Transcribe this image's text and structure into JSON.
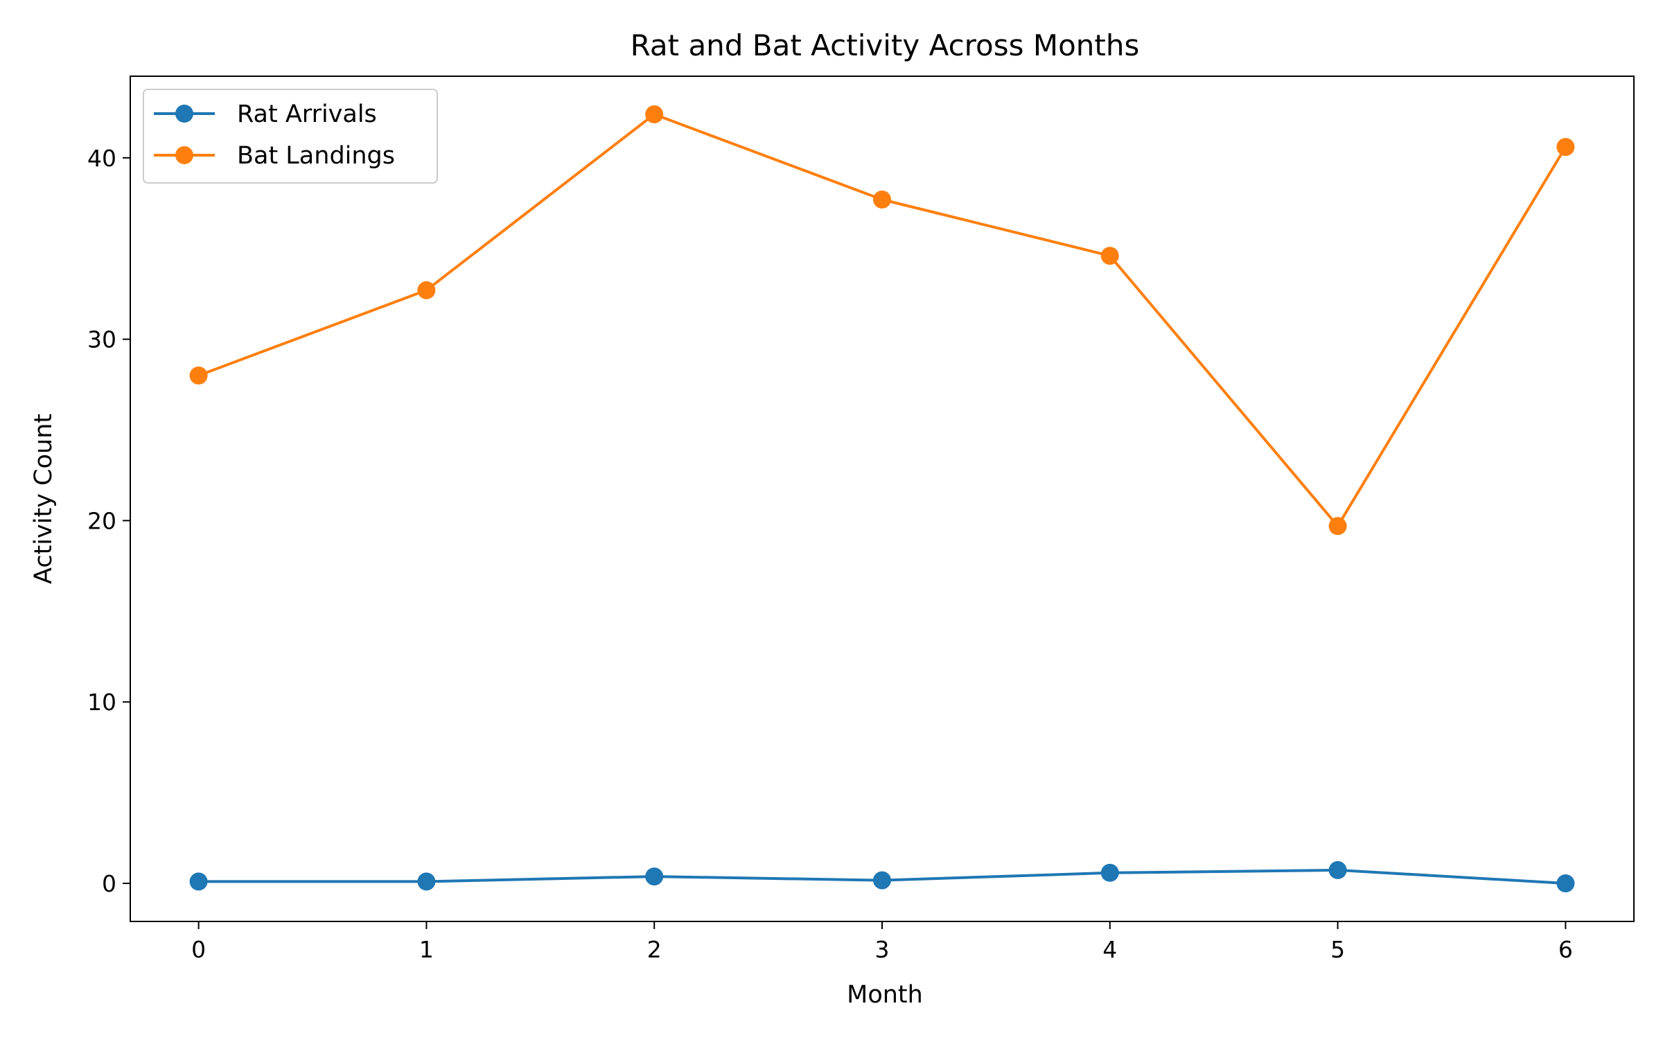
{
  "chart_data": {
    "type": "line",
    "title": "Rat and Bat Activity Across Months",
    "xlabel": "Month",
    "ylabel": "Activity Count",
    "x": [
      0,
      1,
      2,
      3,
      4,
      5,
      6
    ],
    "xlim": [
      -0.3,
      6.3
    ],
    "ylim": [
      -2.1,
      44.5
    ],
    "xticks": [
      0,
      1,
      2,
      3,
      4,
      5,
      6
    ],
    "yticks": [
      0,
      10,
      20,
      30,
      40
    ],
    "grid": false,
    "legend_position": "upper-left",
    "series": [
      {
        "name": "Rat Arrivals",
        "color": "#1f77b4",
        "marker": "circle",
        "values": [
          0.1,
          0.1,
          0.38,
          0.17,
          0.58,
          0.73,
          0.0
        ]
      },
      {
        "name": "Bat Landings",
        "color": "#ff7f0e",
        "marker": "circle",
        "values": [
          28.0,
          32.7,
          42.4,
          37.7,
          34.6,
          19.7,
          40.6
        ]
      }
    ]
  }
}
